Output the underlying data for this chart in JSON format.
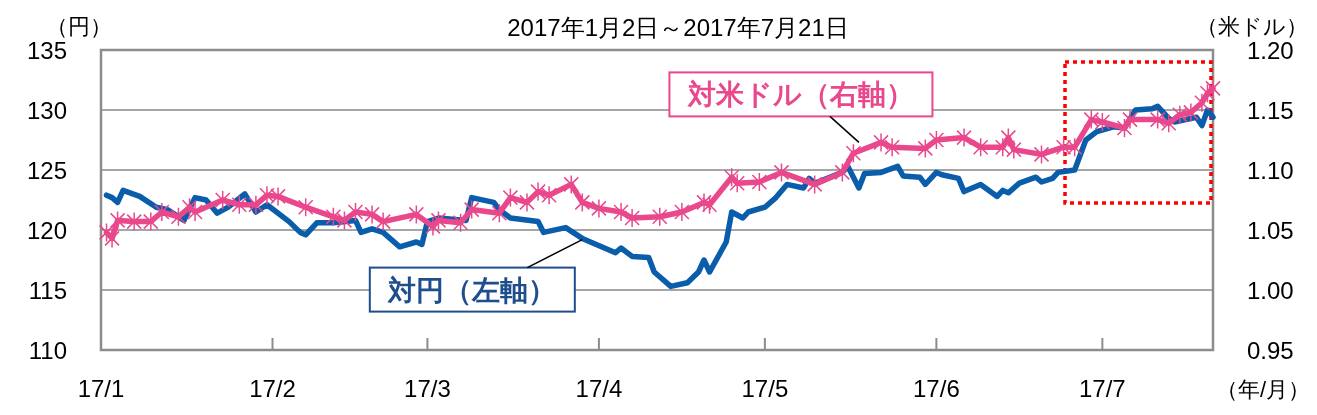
{
  "chart_data": {
    "type": "line",
    "title": "2017年1月2日～2017年7月21日",
    "ylabel": "（円）",
    "y2label": "（米ドル）",
    "xlabel": "（年/月）",
    "xlim": [
      "2017-01-01",
      "2017-07-21"
    ],
    "xticks": [
      {
        "value": "2017-01-01",
        "label": "17/1"
      },
      {
        "value": "2017-02-01",
        "label": "17/2"
      },
      {
        "value": "2017-03-01",
        "label": "17/3"
      },
      {
        "value": "2017-04-01",
        "label": "17/4"
      },
      {
        "value": "2017-05-01",
        "label": "17/5"
      },
      {
        "value": "2017-06-01",
        "label": "17/6"
      },
      {
        "value": "2017-07-01",
        "label": "17/7"
      }
    ],
    "ylim": [
      110,
      135
    ],
    "yticks": [
      110,
      115,
      120,
      125,
      130,
      135
    ],
    "y2lim": [
      0.95,
      1.2
    ],
    "y2ticks": [
      {
        "value": 0.95,
        "label": "0.95"
      },
      {
        "value": 1,
        "label": "1.00"
      },
      {
        "value": 1.05,
        "label": "1.05"
      },
      {
        "value": 1.1,
        "label": "1.10"
      },
      {
        "value": 1.15,
        "label": "1.15"
      },
      {
        "value": 1.2,
        "label": "1.20"
      }
    ],
    "grid": "y",
    "line_style": "solid",
    "series": [
      {
        "type": "line",
        "color": "#0a5dab",
        "marker": "none",
        "x": [
          "2017-01-02",
          "2017-01-03",
          "2017-01-04",
          "2017-01-05",
          "2017-01-08",
          "2017-01-11",
          "2017-01-13",
          "2017-01-16",
          "2017-01-18",
          "2017-01-20",
          "2017-01-22",
          "2017-01-24",
          "2017-01-27",
          "2017-01-29",
          "2017-01-31",
          "2017-02-04",
          "2017-02-06",
          "2017-02-07",
          "2017-02-09",
          "2017-02-12",
          "2017-02-16",
          "2017-02-17",
          "2017-02-19",
          "2017-02-21",
          "2017-02-24",
          "2017-02-27",
          "2017-02-28",
          "2017-03-01",
          "2017-03-03",
          "2017-03-08",
          "2017-03-09",
          "2017-03-13",
          "2017-03-14",
          "2017-03-16",
          "2017-03-21",
          "2017-03-22",
          "2017-03-26",
          "2017-03-29",
          "2017-04-04",
          "2017-04-05",
          "2017-04-07",
          "2017-04-10",
          "2017-04-11",
          "2017-04-14",
          "2017-04-17",
          "2017-04-19",
          "2017-04-20",
          "2017-04-21",
          "2017-04-24",
          "2017-04-25",
          "2017-04-27",
          "2017-04-28",
          "2017-05-01",
          "2017-05-03",
          "2017-05-05",
          "2017-05-08",
          "2017-05-09",
          "2017-05-10",
          "2017-05-15",
          "2017-05-16",
          "2017-05-18",
          "2017-05-19",
          "2017-05-22",
          "2017-05-25",
          "2017-05-26",
          "2017-05-29",
          "2017-05-30",
          "2017-06-01",
          "2017-06-02",
          "2017-06-05",
          "2017-06-06",
          "2017-06-09",
          "2017-06-12",
          "2017-06-13",
          "2017-06-14",
          "2017-06-16",
          "2017-06-19",
          "2017-06-20",
          "2017-06-22",
          "2017-06-23",
          "2017-06-26",
          "2017-06-28",
          "2017-06-30",
          "2017-07-03",
          "2017-07-05",
          "2017-07-07",
          "2017-07-10",
          "2017-07-11",
          "2017-07-13",
          "2017-07-14",
          "2017-07-18",
          "2017-07-19",
          "2017-07-20",
          "2017-07-21"
        ],
        "values": [
          122.9,
          122.7,
          122.3,
          123.3,
          122.8,
          121.9,
          121.7,
          120.8,
          122.7,
          122.5,
          121.4,
          121.9,
          123.0,
          121.5,
          122.1,
          120.7,
          119.8,
          119.6,
          120.6,
          120.6,
          120.8,
          119.8,
          120.1,
          119.8,
          118.6,
          119.0,
          118.8,
          120.7,
          121.0,
          120.8,
          122.7,
          122.3,
          121.7,
          121.0,
          120.7,
          119.8,
          120.2,
          119.3,
          118.1,
          118.5,
          117.8,
          117.7,
          116.5,
          115.3,
          115.6,
          116.5,
          117.5,
          116.5,
          119.0,
          121.5,
          121.0,
          121.5,
          121.9,
          122.7,
          123.8,
          123.5,
          124.3,
          123.9,
          124.8,
          125.3,
          123.5,
          124.7,
          124.8,
          125.3,
          124.5,
          124.4,
          123.8,
          124.8,
          124.6,
          124.3,
          123.2,
          123.8,
          122.8,
          123.3,
          123.1,
          123.9,
          124.4,
          124.0,
          124.3,
          124.8,
          125.0,
          127.5,
          128.2,
          128.6,
          128.5,
          130.0,
          130.1,
          130.3,
          129.3,
          129.0,
          129.4,
          128.7,
          130.0,
          129.4
        ]
      },
      {
        "type": "line",
        "axis": "y2",
        "color": "#e9488c",
        "marker": "cross",
        "x": [
          "2017-01-02",
          "2017-01-03",
          "2017-01-04",
          "2017-01-07",
          "2017-01-10",
          "2017-01-12",
          "2017-01-15",
          "2017-01-17",
          "2017-01-18",
          "2017-01-23",
          "2017-01-26",
          "2017-01-29",
          "2017-01-31",
          "2017-02-02",
          "2017-02-07",
          "2017-02-12",
          "2017-02-14",
          "2017-02-16",
          "2017-02-19",
          "2017-02-21",
          "2017-02-27",
          "2017-03-02",
          "2017-03-03",
          "2017-03-07",
          "2017-03-09",
          "2017-03-14",
          "2017-03-16",
          "2017-03-19",
          "2017-03-21",
          "2017-03-23",
          "2017-03-27",
          "2017-03-29",
          "2017-04-01",
          "2017-04-05",
          "2017-04-07",
          "2017-04-12",
          "2017-04-16",
          "2017-04-20",
          "2017-04-21",
          "2017-04-25",
          "2017-04-26",
          "2017-04-30",
          "2017-05-04",
          "2017-05-10",
          "2017-05-15",
          "2017-05-17",
          "2017-05-22",
          "2017-05-24",
          "2017-05-30",
          "2017-06-01",
          "2017-06-06",
          "2017-06-09",
          "2017-06-13",
          "2017-06-14",
          "2017-06-15",
          "2017-06-20",
          "2017-06-24",
          "2017-06-26",
          "2017-06-29",
          "2017-07-01",
          "2017-07-05",
          "2017-07-06",
          "2017-07-11",
          "2017-07-13",
          "2017-07-15",
          "2017-07-17",
          "2017-07-19",
          "2017-07-20",
          "2017-07-21"
        ],
        "values": [
          1.048,
          1.043,
          1.058,
          1.057,
          1.057,
          1.065,
          1.061,
          1.069,
          1.065,
          1.075,
          1.071,
          1.071,
          1.079,
          1.078,
          1.069,
          1.061,
          1.058,
          1.065,
          1.063,
          1.057,
          1.063,
          1.053,
          1.058,
          1.056,
          1.067,
          1.064,
          1.077,
          1.073,
          1.082,
          1.079,
          1.088,
          1.073,
          1.068,
          1.065,
          1.06,
          1.061,
          1.065,
          1.073,
          1.071,
          1.094,
          1.089,
          1.09,
          1.098,
          1.088,
          1.098,
          1.114,
          1.123,
          1.119,
          1.118,
          1.125,
          1.127,
          1.119,
          1.119,
          1.127,
          1.117,
          1.113,
          1.119,
          1.119,
          1.142,
          1.14,
          1.135,
          1.142,
          1.142,
          1.139,
          1.146,
          1.148,
          1.156,
          1.164,
          1.168
        ]
      }
    ],
    "annotations": [
      {
        "text": "対円（左軸）",
        "x": "2017-03-29",
        "y": 119.2
      },
      {
        "text": "対米ドル（右軸）",
        "x": "2017-05-18",
        "y": 127.3
      }
    ]
  }
}
